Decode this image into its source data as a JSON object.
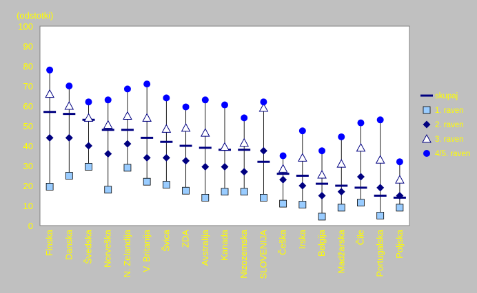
{
  "chart_data": {
    "type": "scatter",
    "title": "",
    "ylabel": "(odstotki)",
    "xlabel": "",
    "ylim": [
      0,
      100
    ],
    "yticks": [
      0,
      10,
      20,
      30,
      40,
      50,
      60,
      70,
      80,
      90,
      100
    ],
    "grid": false,
    "legend_position": "right",
    "categories": [
      "Finska",
      "Danska",
      "Švedska",
      "Norveška",
      "N. Zelandija",
      "V. Britanija",
      "Švica",
      "ZDA",
      "Avstralija",
      "Kanada",
      "Nizozemska",
      "SLOVENIJA",
      "Češka",
      "Irska",
      "Belgija",
      "Madžarska",
      "Čile",
      "Portugalska",
      "Poljska"
    ],
    "series": [
      {
        "name": "skupaj",
        "marker": "dash",
        "color": "#000080",
        "values": [
          57,
          56,
          53,
          48,
          48,
          44,
          42,
          40,
          39,
          38,
          38,
          32,
          26,
          25,
          21,
          20,
          19,
          15,
          14
        ]
      },
      {
        "name": "1. raven",
        "marker": "square",
        "color": "#99ccff",
        "values": [
          19.5,
          25,
          29.5,
          18,
          29,
          22,
          20.5,
          17.5,
          14,
          17,
          17,
          14,
          11,
          10.5,
          4.5,
          9,
          11.5,
          5,
          9
        ]
      },
      {
        "name": "2. raven",
        "marker": "diamond",
        "color": "#000080",
        "values": [
          44,
          44,
          40,
          36,
          41,
          34,
          34,
          32.5,
          29.5,
          29.5,
          27,
          37.5,
          23,
          20,
          15,
          17,
          24.5,
          19,
          15
        ]
      },
      {
        "name": "3. raven",
        "marker": "triangle",
        "color": "#ffffff",
        "values": [
          66,
          60,
          54,
          50.5,
          55,
          54,
          48.5,
          49,
          46.5,
          39.5,
          41.5,
          59,
          28.5,
          34,
          25.5,
          31,
          39,
          33,
          23
        ]
      },
      {
        "name": "4/5. raven",
        "marker": "circle",
        "color": "#0000ff",
        "values": [
          78,
          70,
          62,
          63,
          68.5,
          71,
          64,
          59.5,
          63,
          60.5,
          54,
          62,
          35,
          47.5,
          37.5,
          44.5,
          51.5,
          53,
          32
        ]
      }
    ]
  }
}
